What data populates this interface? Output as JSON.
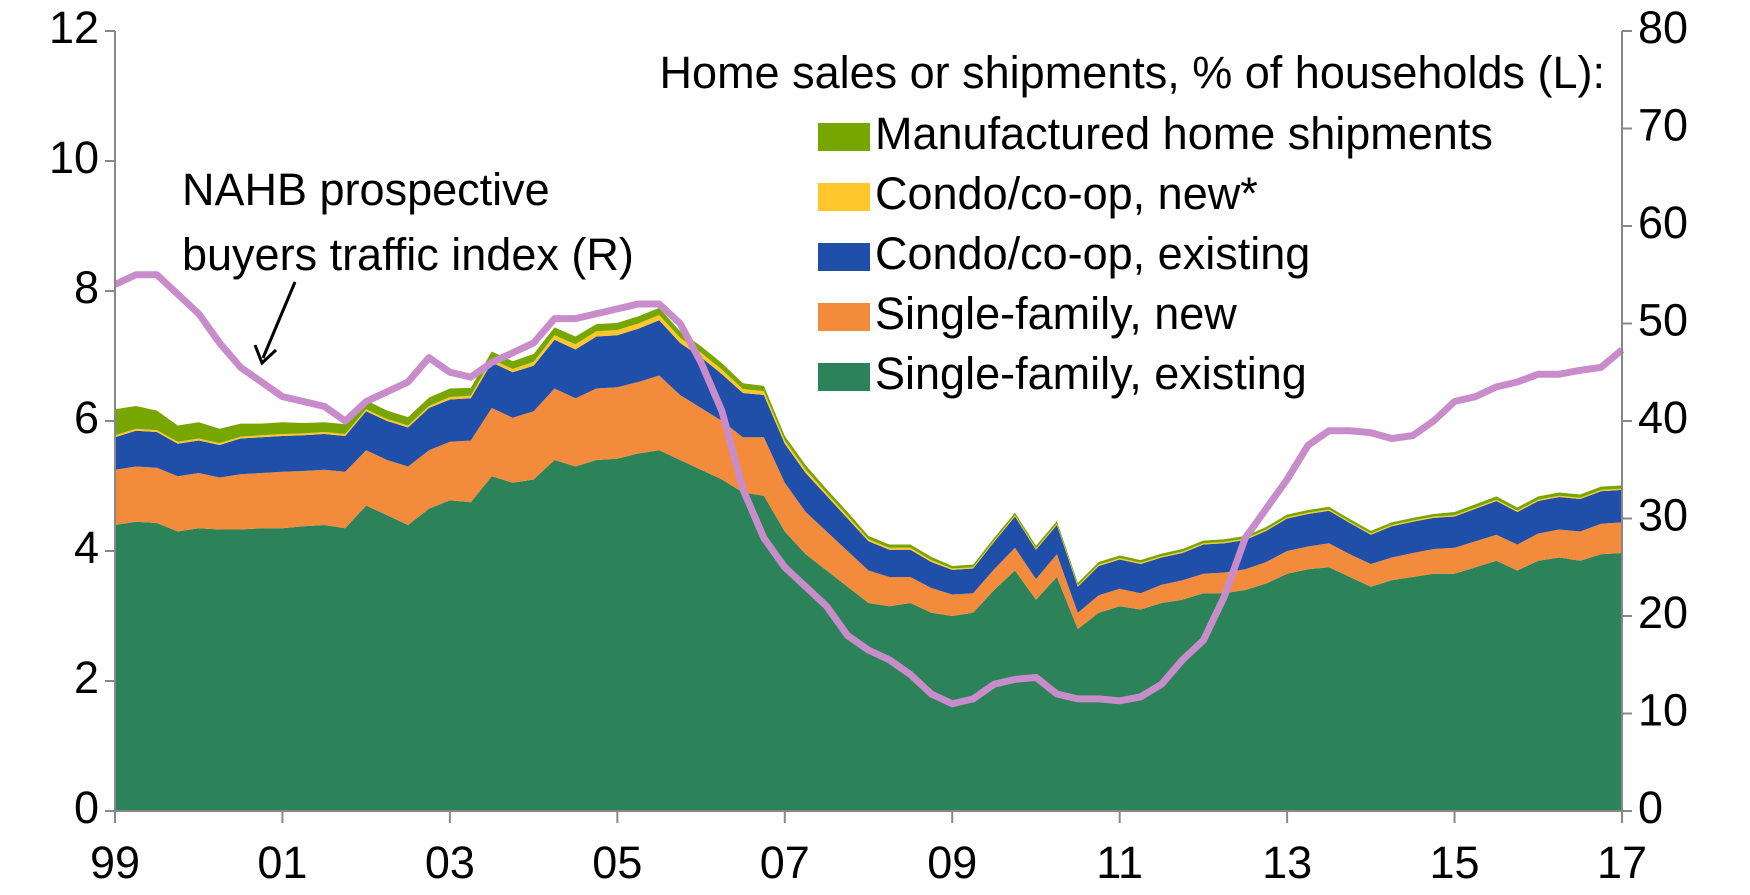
{
  "chart_data": {
    "type": "stacked_area_line",
    "legend_title": "Home sales or shipments, % of households (L):",
    "annotation": [
      "NAHB prospective",
      "buyers traffic index (R)"
    ],
    "x": [
      1999,
      1999.25,
      1999.5,
      1999.75,
      2000,
      2000.25,
      2000.5,
      2000.75,
      2001,
      2001.25,
      2001.5,
      2001.75,
      2002,
      2002.25,
      2002.5,
      2002.75,
      2003,
      2003.25,
      2003.5,
      2003.75,
      2004,
      2004.25,
      2004.5,
      2004.75,
      2005,
      2005.25,
      2005.5,
      2005.75,
      2006,
      2006.25,
      2006.5,
      2006.75,
      2007,
      2007.25,
      2007.5,
      2007.75,
      2008,
      2008.25,
      2008.5,
      2008.75,
      2009,
      2009.25,
      2009.5,
      2009.75,
      2010,
      2010.25,
      2010.5,
      2010.75,
      2011,
      2011.25,
      2011.5,
      2011.75,
      2012,
      2012.25,
      2012.5,
      2012.75,
      2013,
      2013.25,
      2013.5,
      2013.75,
      2014,
      2014.25,
      2014.5,
      2014.75,
      2015,
      2015.25,
      2015.5,
      2015.75,
      2016,
      2016.25,
      2016.5,
      2016.75,
      2017
    ],
    "series": [
      {
        "name": "Single-family, existing",
        "color": "#2c8359",
        "values": [
          4.4,
          4.45,
          4.43,
          4.3,
          4.35,
          4.33,
          4.33,
          4.35,
          4.35,
          4.38,
          4.4,
          4.35,
          4.7,
          4.55,
          4.4,
          4.65,
          4.78,
          4.75,
          5.15,
          5.05,
          5.1,
          5.4,
          5.3,
          5.4,
          5.42,
          5.5,
          5.55,
          5.4,
          5.25,
          5.1,
          4.9,
          4.85,
          4.3,
          3.95,
          3.7,
          3.45,
          3.2,
          3.15,
          3.2,
          3.05,
          3.0,
          3.05,
          3.4,
          3.7,
          3.25,
          3.6,
          2.8,
          3.05,
          3.15,
          3.1,
          3.2,
          3.25,
          3.35,
          3.35,
          3.4,
          3.5,
          3.65,
          3.72,
          3.75,
          3.6,
          3.45,
          3.55,
          3.6,
          3.65,
          3.65,
          3.75,
          3.85,
          3.7,
          3.85,
          3.9,
          3.85,
          3.95,
          3.97
        ]
      },
      {
        "name": "Single-family, new",
        "color": "#f38b3c",
        "values": [
          0.85,
          0.85,
          0.85,
          0.85,
          0.85,
          0.8,
          0.85,
          0.85,
          0.87,
          0.85,
          0.85,
          0.87,
          0.85,
          0.85,
          0.9,
          0.9,
          0.9,
          0.95,
          1.05,
          1.0,
          1.05,
          1.1,
          1.05,
          1.1,
          1.1,
          1.1,
          1.15,
          1.0,
          0.95,
          0.9,
          0.85,
          0.9,
          0.75,
          0.65,
          0.6,
          0.55,
          0.5,
          0.45,
          0.4,
          0.38,
          0.33,
          0.3,
          0.32,
          0.35,
          0.32,
          0.35,
          0.25,
          0.27,
          0.27,
          0.25,
          0.28,
          0.3,
          0.3,
          0.32,
          0.32,
          0.33,
          0.35,
          0.35,
          0.37,
          0.35,
          0.35,
          0.35,
          0.37,
          0.38,
          0.4,
          0.4,
          0.4,
          0.4,
          0.42,
          0.43,
          0.45,
          0.47,
          0.47
        ]
      },
      {
        "name": "Condo/co-op, existing",
        "color": "#1f4fa8",
        "values": [
          0.5,
          0.55,
          0.55,
          0.5,
          0.5,
          0.5,
          0.55,
          0.55,
          0.55,
          0.55,
          0.55,
          0.55,
          0.6,
          0.6,
          0.6,
          0.65,
          0.65,
          0.65,
          0.7,
          0.7,
          0.7,
          0.75,
          0.75,
          0.8,
          0.8,
          0.82,
          0.85,
          0.8,
          0.78,
          0.72,
          0.68,
          0.65,
          0.6,
          0.6,
          0.55,
          0.5,
          0.45,
          0.42,
          0.42,
          0.4,
          0.38,
          0.38,
          0.42,
          0.48,
          0.45,
          0.45,
          0.4,
          0.45,
          0.45,
          0.45,
          0.42,
          0.42,
          0.45,
          0.45,
          0.45,
          0.48,
          0.5,
          0.5,
          0.5,
          0.48,
          0.45,
          0.48,
          0.48,
          0.48,
          0.48,
          0.5,
          0.52,
          0.5,
          0.5,
          0.5,
          0.5,
          0.5,
          0.5
        ]
      },
      {
        "name": "Condo/co-op, new*",
        "color": "#ffc72c",
        "values": [
          0.03,
          0.03,
          0.03,
          0.03,
          0.03,
          0.03,
          0.03,
          0.03,
          0.03,
          0.03,
          0.03,
          0.03,
          0.03,
          0.03,
          0.03,
          0.03,
          0.04,
          0.04,
          0.05,
          0.05,
          0.06,
          0.07,
          0.08,
          0.08,
          0.08,
          0.08,
          0.08,
          0.08,
          0.07,
          0.07,
          0.06,
          0.06,
          0.05,
          0.05,
          0.04,
          0.04,
          0.03,
          0.03,
          0.03,
          0.03,
          0.02,
          0.02,
          0.02,
          0.02,
          0.02,
          0.02,
          0.02,
          0.02,
          0.02,
          0.02,
          0.02,
          0.02,
          0.02,
          0.02,
          0.02,
          0.02,
          0.02,
          0.02,
          0.02,
          0.02,
          0.02,
          0.02,
          0.02,
          0.02,
          0.02,
          0.02,
          0.02,
          0.02,
          0.02,
          0.02,
          0.02,
          0.02,
          0.02
        ]
      },
      {
        "name": "Manufactured home shipments",
        "color": "#78a600",
        "values": [
          0.4,
          0.35,
          0.3,
          0.25,
          0.25,
          0.22,
          0.2,
          0.18,
          0.18,
          0.16,
          0.15,
          0.15,
          0.14,
          0.13,
          0.13,
          0.13,
          0.13,
          0.12,
          0.12,
          0.12,
          0.12,
          0.12,
          0.12,
          0.11,
          0.11,
          0.11,
          0.11,
          0.1,
          0.1,
          0.1,
          0.09,
          0.08,
          0.07,
          0.07,
          0.06,
          0.06,
          0.05,
          0.05,
          0.05,
          0.05,
          0.04,
          0.04,
          0.04,
          0.04,
          0.04,
          0.04,
          0.04,
          0.04,
          0.04,
          0.04,
          0.04,
          0.04,
          0.04,
          0.04,
          0.04,
          0.04,
          0.04,
          0.04,
          0.04,
          0.04,
          0.04,
          0.04,
          0.04,
          0.04,
          0.05,
          0.05,
          0.05,
          0.05,
          0.05,
          0.05,
          0.05,
          0.05,
          0.05
        ]
      },
      {
        "axis": "y2",
        "color": "#c98ccb",
        "values": [
          54,
          55,
          55,
          53,
          51,
          48,
          45.5,
          44,
          42.5,
          42,
          41.5,
          40,
          42,
          43,
          44,
          46.5,
          45,
          44.5,
          46,
          47,
          48,
          50.5,
          50.5,
          51,
          51.5,
          52,
          52,
          50,
          46,
          41,
          33,
          28,
          25,
          23,
          21,
          18,
          16.5,
          15.5,
          14,
          12,
          11,
          11.5,
          13,
          13.5,
          13.7,
          12,
          11.5,
          11.5,
          11.3,
          11.7,
          13,
          15.5,
          17.5,
          22,
          28,
          31,
          34,
          37.5,
          39,
          39,
          38.8,
          38.2,
          38.5,
          40,
          42,
          42.5,
          43.5,
          44,
          44.8,
          44.8,
          45.2,
          45.5,
          47.3
        ]
      }
    ],
    "xlim": [
      1999,
      2017
    ],
    "xticks": [
      {
        "value": 1999,
        "label": "99"
      },
      {
        "value": 2001,
        "label": "01"
      },
      {
        "value": 2003,
        "label": "03"
      },
      {
        "value": 2005,
        "label": "05"
      },
      {
        "value": 2007,
        "label": "07"
      },
      {
        "value": 2009,
        "label": "09"
      },
      {
        "value": 2011,
        "label": "11"
      },
      {
        "value": 2013,
        "label": "13"
      },
      {
        "value": 2015,
        "label": "15"
      },
      {
        "value": 2017,
        "label": "17"
      }
    ],
    "ylim": [
      0,
      12
    ],
    "yticks": [
      0,
      2,
      4,
      6,
      8,
      10,
      12
    ],
    "y2lim": [
      0,
      80
    ],
    "y2ticks": [
      0,
      10,
      20,
      30,
      40,
      50,
      60,
      70,
      80
    ]
  }
}
